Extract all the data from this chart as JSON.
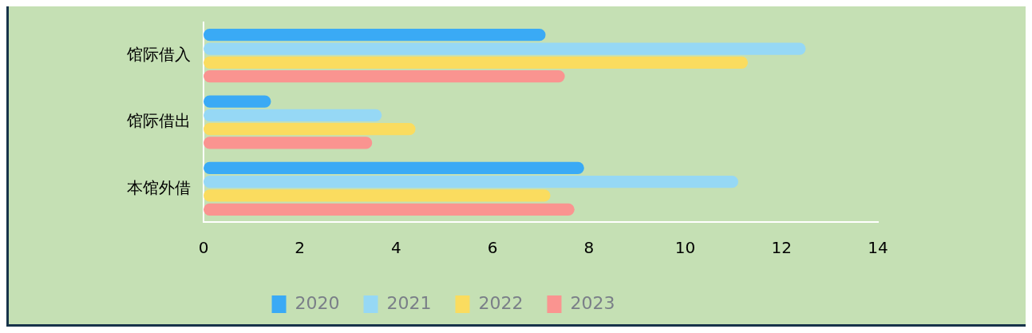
{
  "chart_data": {
    "type": "bar",
    "orientation": "horizontal",
    "categories": [
      "馆际借入",
      "馆际借出",
      "本馆外借"
    ],
    "series": [
      {
        "name": "2020",
        "color": "#3aaaf5",
        "values": [
          7.1,
          1.4,
          7.9
        ]
      },
      {
        "name": "2021",
        "color": "#96d8f5",
        "values": [
          12.5,
          3.7,
          11.1
        ]
      },
      {
        "name": "2022",
        "color": "#fadc5f",
        "values": [
          11.3,
          4.4,
          7.2
        ]
      },
      {
        "name": "2023",
        "color": "#fa9490",
        "values": [
          7.5,
          3.5,
          7.7
        ]
      }
    ],
    "xlim": [
      0,
      14
    ],
    "xticks": [
      0,
      2,
      4,
      6,
      8,
      10,
      12,
      14
    ],
    "grid": false,
    "legend": "bottom"
  }
}
